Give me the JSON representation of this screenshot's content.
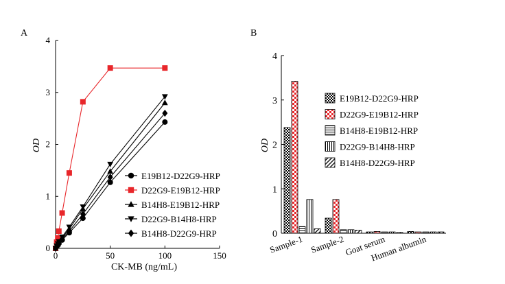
{
  "chart_data": [
    {
      "panel": "A",
      "type": "line",
      "xlabel": "CK-MB (ng/mL)",
      "ylabel": "OD",
      "xlim": [
        0,
        150
      ],
      "ylim": [
        0,
        4
      ],
      "xticks": [
        "0",
        "50",
        "100",
        "150"
      ],
      "yticks": [
        "0",
        "1",
        "2",
        "3",
        "4"
      ],
      "grid": false,
      "legend_position": "right",
      "x": [
        0,
        1,
        2,
        3,
        6,
        12.5,
        25,
        50,
        100
      ],
      "series": [
        {
          "name": "E19B12-D22G9-HRP",
          "marker": "circle",
          "color": "#000000",
          "values": [
            0.0,
            0.03,
            0.06,
            0.09,
            0.16,
            0.3,
            0.58,
            1.27,
            2.43
          ]
        },
        {
          "name": "D22G9-E19B12-HRP",
          "marker": "square",
          "color": "#e8262a",
          "values": [
            0.0,
            0.12,
            0.2,
            0.33,
            0.68,
            1.45,
            2.82,
            3.47,
            3.47
          ]
        },
        {
          "name": "B14H8-E19B12-HRP",
          "marker": "triangle-up",
          "color": "#000000",
          "values": [
            0.0,
            0.04,
            0.08,
            0.12,
            0.2,
            0.37,
            0.76,
            1.48,
            2.8
          ]
        },
        {
          "name": "D22G9-B14H8-HRP",
          "marker": "triangle-down",
          "color": "#000000",
          "values": [
            0.0,
            0.05,
            0.09,
            0.13,
            0.22,
            0.41,
            0.8,
            1.62,
            2.92
          ]
        },
        {
          "name": "B14H8-D22G9-HRP",
          "marker": "diamond",
          "color": "#000000",
          "values": [
            0.0,
            0.035,
            0.07,
            0.1,
            0.18,
            0.33,
            0.66,
            1.37,
            2.6
          ]
        }
      ]
    },
    {
      "panel": "B",
      "type": "bar",
      "ylabel": "OD",
      "ylim": [
        0,
        4
      ],
      "yticks": [
        "0",
        "1",
        "2",
        "3",
        "4"
      ],
      "grid": false,
      "legend_position": "upper-center",
      "categories": [
        "Sample-1",
        "Sample-2",
        "Goat serum",
        "Human albumin"
      ],
      "series": [
        {
          "name": "E19B12-D22G9-HRP",
          "pattern": "checker-black",
          "values": [
            2.38,
            0.34,
            0.03,
            0.04
          ]
        },
        {
          "name": "D22G9-E19B12-HRP",
          "pattern": "checker-red",
          "values": [
            3.42,
            0.76,
            0.04,
            0.03
          ]
        },
        {
          "name": "B14H8-E19B12-HRP",
          "pattern": "horizontal",
          "values": [
            0.15,
            0.08,
            0.03,
            0.03
          ]
        },
        {
          "name": "D22G9-B14H8-HRP",
          "pattern": "vertical",
          "values": [
            0.76,
            0.08,
            0.03,
            0.03
          ]
        },
        {
          "name": "B14H8-D22G9-HRP",
          "pattern": "diagonal",
          "values": [
            0.1,
            0.07,
            0.02,
            0.03
          ]
        }
      ]
    }
  ],
  "panel_labels": {
    "a": "A",
    "b": "B"
  }
}
